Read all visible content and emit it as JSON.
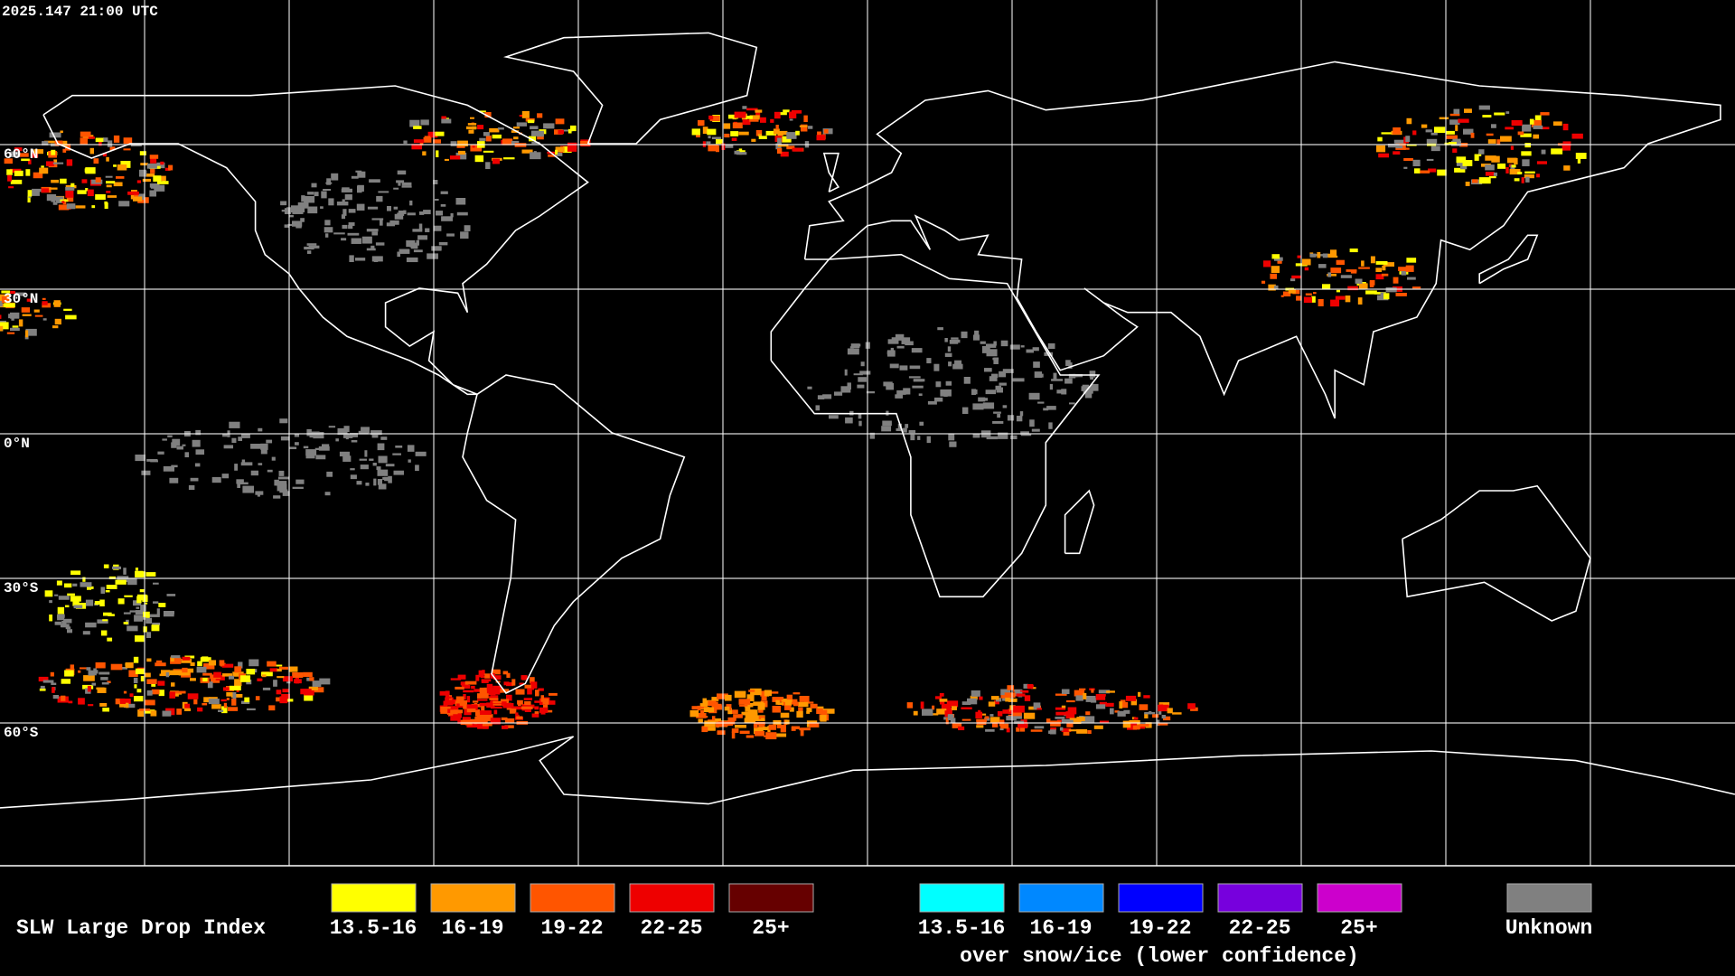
{
  "header": {
    "timestamp": "2025.147 21:00 UTC"
  },
  "map": {
    "lat_labels": [
      "60°N",
      "30°N",
      "0°N",
      "30°S",
      "60°S"
    ]
  },
  "legend": {
    "title": "SLW Large Drop Index",
    "entries": [
      {
        "label": "13.5-16",
        "color": "#ffff00"
      },
      {
        "label": "16-19",
        "color": "#ff9900"
      },
      {
        "label": "19-22",
        "color": "#ff5500"
      },
      {
        "label": "22-25",
        "color": "#ee0000"
      },
      {
        "label": "25+",
        "color": "#660000"
      }
    ],
    "snow_ice_entries": [
      {
        "label": "13.5-16",
        "color": "#00ffff"
      },
      {
        "label": "16-19",
        "color": "#0088ff"
      },
      {
        "label": "19-22",
        "color": "#0000ff"
      },
      {
        "label": "22-25",
        "color": "#7700dd"
      },
      {
        "label": "25+",
        "color": "#cc00cc"
      }
    ],
    "snow_ice_caption": "over snow/ice (lower confidence)",
    "unknown": {
      "label": "Unknown",
      "color": "#808080"
    }
  }
}
